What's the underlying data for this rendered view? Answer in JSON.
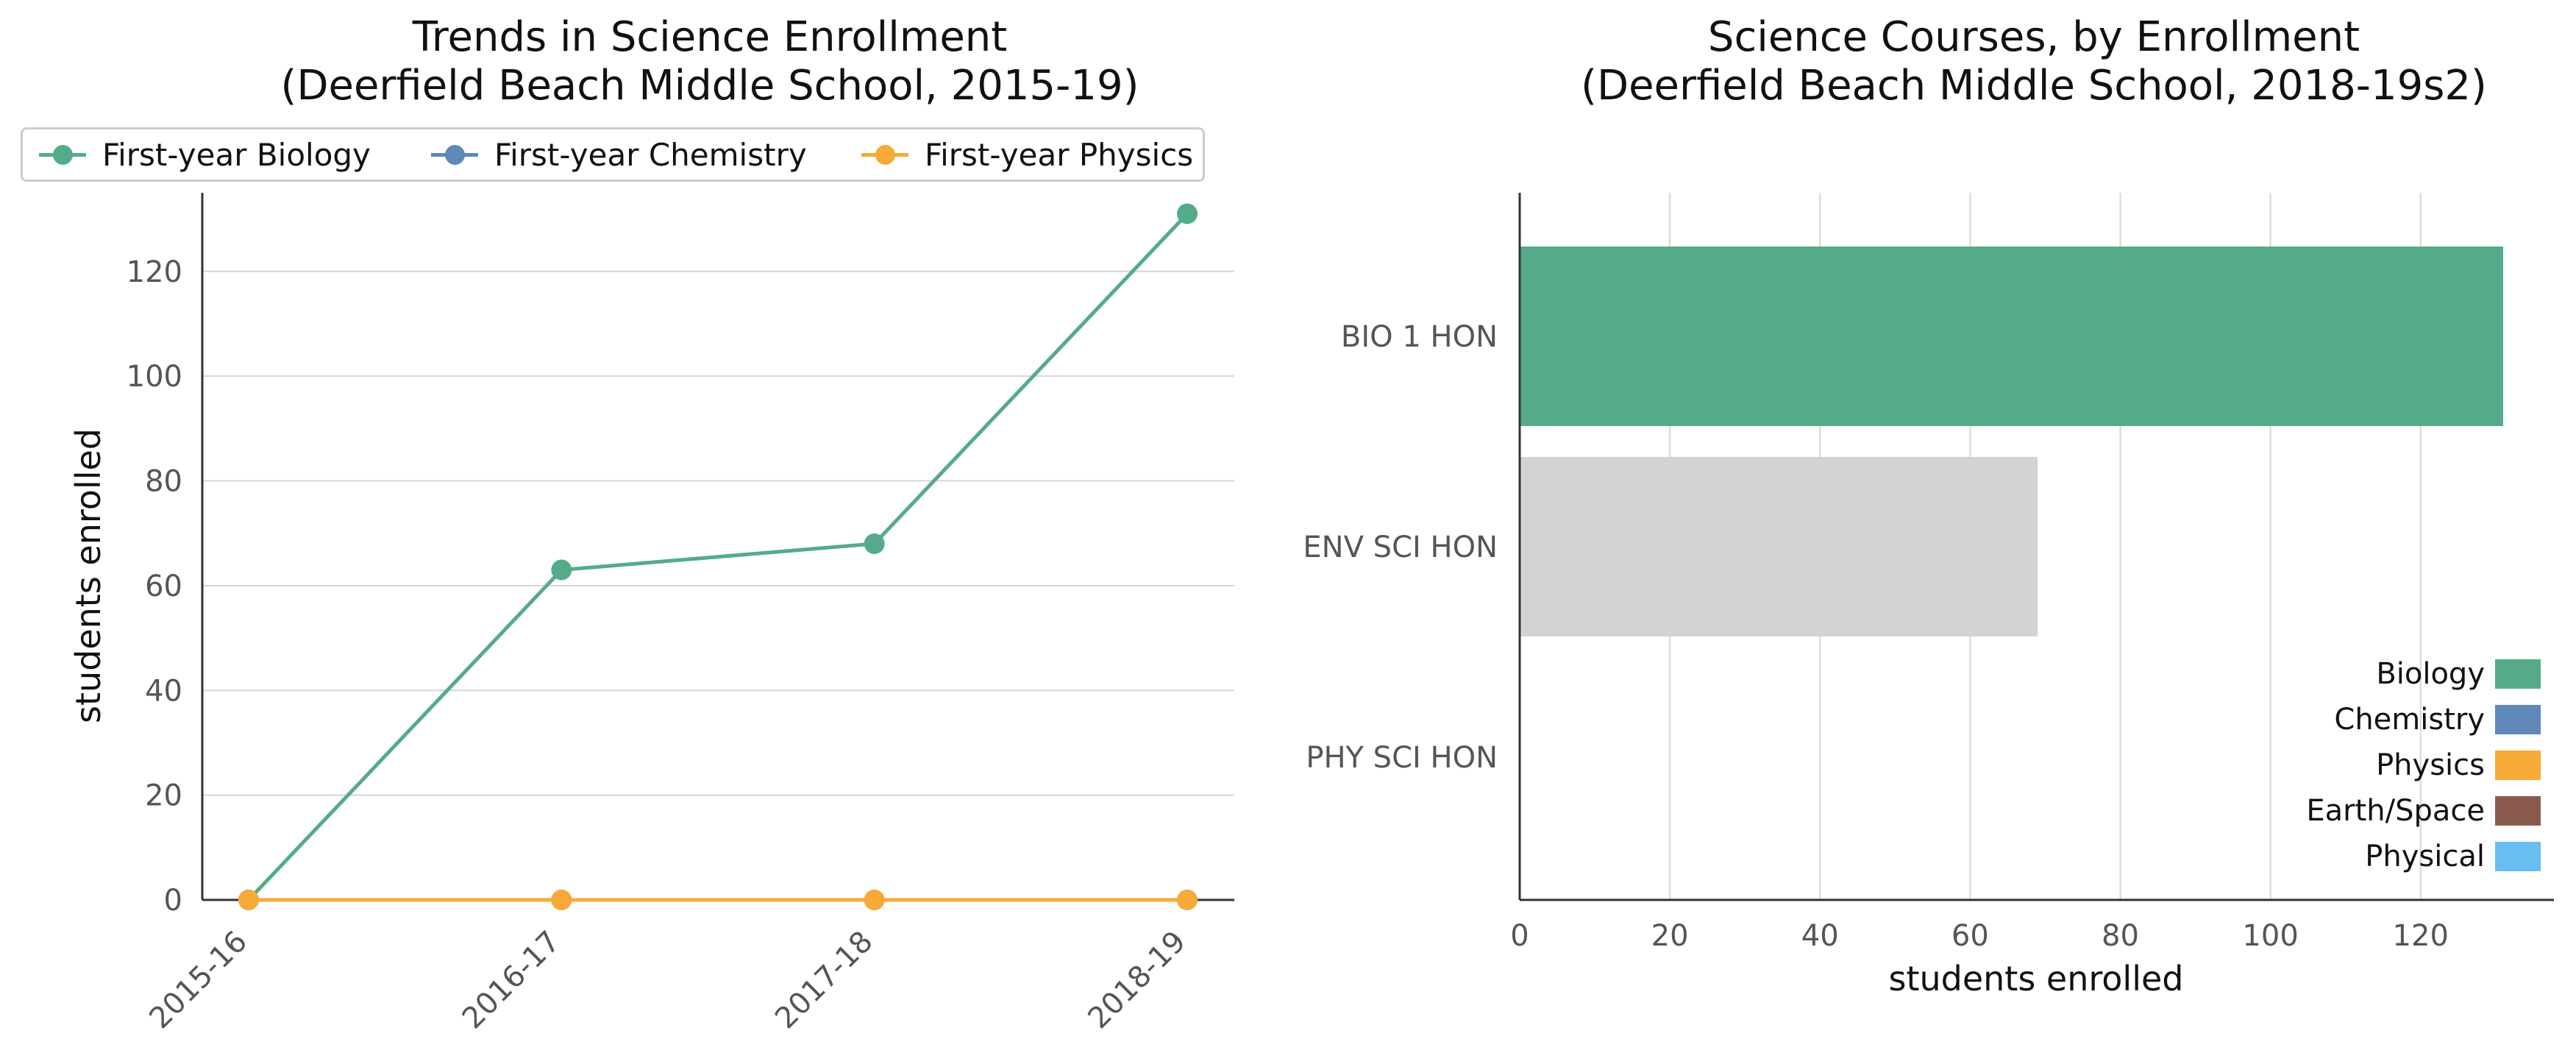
{
  "chart_data": [
    {
      "type": "line",
      "title": "Trends in Science Enrollment\n(Deerfield Beach Middle School, 2015-19)",
      "title_lines": [
        "Trends in Science Enrollment",
        "(Deerfield Beach Middle School, 2015-19)"
      ],
      "xlabel": "",
      "ylabel": "students enrolled",
      "categories": [
        "2015-16",
        "2016-17",
        "2017-18",
        "2018-19"
      ],
      "ylim": [
        0,
        135
      ],
      "yticks": [
        0,
        20,
        40,
        60,
        80,
        100,
        120
      ],
      "grid": "horizontal",
      "legend_position": "top",
      "series": [
        {
          "name": "First-year Biology",
          "values": [
            0,
            63,
            68,
            131
          ],
          "color": "#55ab89"
        },
        {
          "name": "First-year Chemistry",
          "values": [
            0,
            0,
            0,
            0
          ],
          "color": "#6088b8"
        },
        {
          "name": "First-year Physics",
          "values": [
            0,
            0,
            0,
            0
          ],
          "color": "#f7aa38"
        }
      ]
    },
    {
      "type": "bar",
      "orientation": "horizontal",
      "title": "Science Courses, by Enrollment\n(Deerfield Beach Middle School, 2018-19s2)",
      "title_lines": [
        "Science Courses, by Enrollment",
        "(Deerfield Beach Middle School, 2018-19s2)"
      ],
      "xlabel": "students enrolled",
      "ylabel": "",
      "categories": [
        "BIO 1 HON",
        "ENV SCI HON",
        "PHY SCI HON"
      ],
      "values": [
        131,
        69,
        0
      ],
      "bar_colors": [
        "#55ab89",
        "#d3d3d3",
        "#d3d3d3"
      ],
      "xlim": [
        0,
        135
      ],
      "xticks": [
        0,
        20,
        40,
        60,
        80,
        100,
        120
      ],
      "grid": "vertical",
      "legend_position": "lower-right",
      "legend": [
        {
          "name": "Biology",
          "color": "#55ab89"
        },
        {
          "name": "Chemistry",
          "color": "#6088b8"
        },
        {
          "name": "Physics",
          "color": "#f7aa38"
        },
        {
          "name": "Earth/Space",
          "color": "#8b5a4e"
        },
        {
          "name": "Physical",
          "color": "#66bff0"
        }
      ]
    }
  ]
}
